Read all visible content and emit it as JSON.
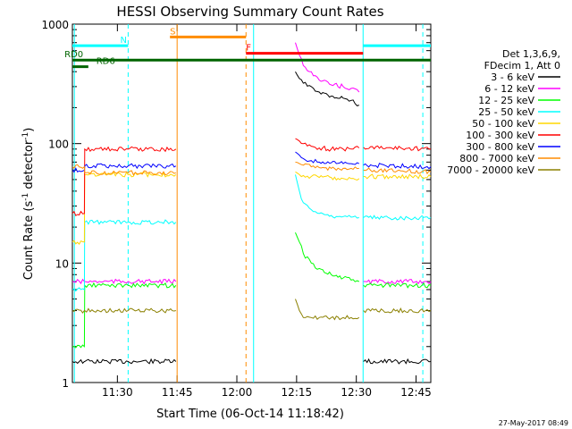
{
  "chart_data": {
    "type": "line",
    "title": "HESSI Observing Summary Count Rates",
    "xlabel": "Start Time (06-Oct-14 11:18:42)",
    "ylabel": "Count Rate (s⁻¹ detector⁻¹)",
    "ylabel_parts": [
      "Count Rate (s",
      "-1",
      " detector",
      "-1",
      ")"
    ],
    "footer": "27-May-2017 08:49",
    "yscale": "log",
    "ylim": [
      1,
      1000
    ],
    "xlim_minutes": [
      0,
      90
    ],
    "x_unit": "minutes since 11:18:42",
    "x_ticks": [
      {
        "label": "11:30",
        "min": 11.3
      },
      {
        "label": "11:45",
        "min": 26.3
      },
      {
        "label": "12:00",
        "min": 41.3
      },
      {
        "label": "12:15",
        "min": 56.3
      },
      {
        "label": "12:30",
        "min": 71.3
      },
      {
        "label": "12:45",
        "min": 86.3
      }
    ],
    "y_ticks": [
      {
        "label": "1",
        "v": 1
      },
      {
        "label": "10",
        "v": 10
      },
      {
        "label": "100",
        "v": 100
      },
      {
        "label": "1000",
        "v": 1000
      }
    ],
    "legend_header": [
      "Det 1,3,6,9,",
      "FDecim 1, Att 0"
    ],
    "series": [
      {
        "name": "3 - 6 keV",
        "color": "#000000",
        "x": [
          0,
          3,
          3.1,
          14,
          26,
          27,
          55,
          56,
          57,
          58,
          60,
          62,
          65,
          68,
          70,
          72,
          73,
          73.1,
          90
        ],
        "y": [
          1.5,
          1.5,
          1.5,
          1.5,
          1.5,
          null,
          null,
          400,
          350,
          320,
          300,
          270,
          250,
          240,
          230,
          210,
          null,
          1.5,
          1.5
        ]
      },
      {
        "name": "6 - 12 keV",
        "color": "#ff00ff",
        "x": [
          0,
          3,
          3.1,
          14,
          26,
          27,
          55,
          56,
          57,
          58,
          60,
          62,
          65,
          68,
          70,
          72,
          73,
          73.1,
          90
        ],
        "y": [
          7,
          7,
          7,
          7,
          7,
          null,
          null,
          700,
          550,
          450,
          400,
          340,
          310,
          300,
          290,
          270,
          null,
          7,
          7
        ]
      },
      {
        "name": "12 - 25 keV",
        "color": "#00ff00",
        "x": [
          0,
          3,
          3.1,
          14,
          26,
          27,
          55,
          56,
          57,
          58,
          60,
          62,
          65,
          68,
          70,
          72,
          73,
          73.1,
          90
        ],
        "y": [
          2,
          2,
          6.5,
          6.5,
          6.5,
          null,
          null,
          18,
          15,
          12,
          10,
          9,
          8,
          7.5,
          7.2,
          7,
          null,
          6.5,
          6.5
        ]
      },
      {
        "name": "25 - 50 keV",
        "color": "#00ffff",
        "x": [
          0,
          3,
          3.1,
          14,
          26,
          27,
          55,
          56,
          57,
          58,
          60,
          62,
          65,
          68,
          70,
          72,
          73,
          73.1,
          90
        ],
        "y": [
          6,
          6,
          22,
          22,
          22,
          null,
          null,
          55,
          40,
          32,
          28,
          26,
          25,
          24.5,
          24.2,
          24,
          null,
          24,
          24
        ]
      },
      {
        "name": "50 - 100 keV",
        "color": "#ffd700",
        "x": [
          0,
          3,
          3.1,
          14,
          26,
          27,
          55,
          56,
          57,
          58,
          60,
          62,
          65,
          68,
          70,
          72,
          73,
          73.1,
          90
        ],
        "y": [
          15,
          15,
          55,
          55,
          55,
          null,
          null,
          58,
          55,
          54,
          53,
          52,
          52,
          51,
          51,
          51,
          null,
          53,
          53
        ]
      },
      {
        "name": "100 - 300 keV",
        "color": "#ff0000",
        "x": [
          0,
          3,
          3.1,
          14,
          26,
          27,
          55,
          56,
          57,
          58,
          60,
          62,
          65,
          68,
          70,
          72,
          73,
          73.1,
          90
        ],
        "y": [
          26,
          26,
          90,
          90,
          90,
          null,
          null,
          110,
          105,
          100,
          95,
          92,
          90,
          90,
          90,
          92,
          null,
          93,
          90
        ]
      },
      {
        "name": "300 - 800 keV",
        "color": "#0000ff",
        "x": [
          0,
          3,
          3.1,
          14,
          26,
          27,
          55,
          56,
          57,
          58,
          60,
          62,
          65,
          68,
          70,
          72,
          73,
          73.1,
          90
        ],
        "y": [
          60,
          60,
          65,
          65,
          65,
          null,
          null,
          85,
          80,
          75,
          72,
          70,
          69,
          68,
          68,
          68,
          null,
          66,
          64
        ]
      },
      {
        "name": "800 - 7000 keV",
        "color": "#ff8c00",
        "x": [
          0,
          3,
          3.1,
          14,
          26,
          27,
          55,
          56,
          57,
          58,
          60,
          62,
          65,
          68,
          70,
          72,
          73,
          73.1,
          90
        ],
        "y": [
          64,
          64,
          57,
          57,
          57,
          null,
          null,
          70,
          68,
          66,
          64,
          63,
          62,
          62,
          62,
          62,
          null,
          60,
          58
        ]
      },
      {
        "name": "7000 - 20000 keV",
        "color": "#8b8000",
        "x": [
          0,
          3,
          3.1,
          14,
          26,
          27,
          55,
          56,
          57,
          58,
          60,
          62,
          65,
          68,
          70,
          72,
          73,
          73.1,
          90
        ],
        "y": [
          4,
          4,
          4,
          4,
          4,
          null,
          null,
          5,
          4,
          3.5,
          3.5,
          3.5,
          3.5,
          3.5,
          3.5,
          3.5,
          null,
          4,
          4
        ]
      }
    ],
    "flags": [
      {
        "label": "",
        "color": "#00ffff",
        "y": 660,
        "segments": [
          [
            0,
            14
          ],
          [
            73,
            90
          ]
        ]
      },
      {
        "label": "N",
        "color": "#00ffff",
        "y": 660,
        "label_at": 12
      },
      {
        "label": "S",
        "color": "#ff8c00",
        "y": 780,
        "segments": [
          [
            24.5,
            43.6
          ]
        ],
        "label_at": 24.5
      },
      {
        "label": "F",
        "color": "#ff0000",
        "y": 570,
        "segments": [
          [
            43.6,
            73
          ]
        ],
        "label_at": 43.6
      },
      {
        "label": "RD0",
        "color": "#006400",
        "y": 500,
        "segments": [
          [
            0,
            90
          ]
        ],
        "label_at": -2
      },
      {
        "label": "RD6",
        "color": "#006400",
        "y": 440,
        "segments": [
          [
            0,
            4
          ]
        ],
        "label_at": 6
      }
    ],
    "vlines": [
      {
        "min": 0.5,
        "color": "#00ffff",
        "style": "solid"
      },
      {
        "min": 14,
        "color": "#00ffff",
        "style": "dashed"
      },
      {
        "min": 26.3,
        "color": "#ff8c00",
        "style": "solid"
      },
      {
        "min": 43.6,
        "color": "#ff8c00",
        "style": "dashed"
      },
      {
        "min": 45.5,
        "color": "#00ffff",
        "style": "solid"
      },
      {
        "min": 73,
        "color": "#00ffff",
        "style": "solid"
      },
      {
        "min": 88,
        "color": "#00ffff",
        "style": "dashed"
      }
    ]
  }
}
